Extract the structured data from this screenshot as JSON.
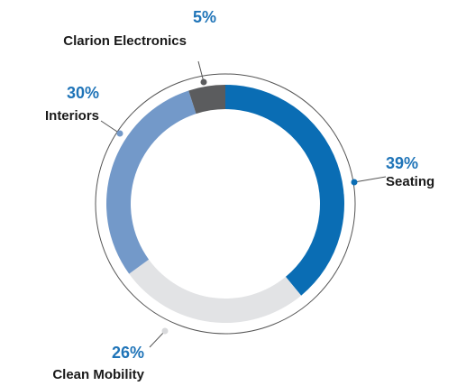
{
  "chart_data": {
    "type": "pie",
    "categories": [
      "Seating",
      "Clean Mobility",
      "Interiors",
      "Clarion Electronics"
    ],
    "values": [
      39,
      26,
      30,
      5
    ],
    "value_labels": [
      "39%",
      "26%",
      "30%",
      "5%"
    ],
    "colors": [
      "#0a6db4",
      "#e2e3e5",
      "#7399c9",
      "#5b5c5e"
    ]
  }
}
